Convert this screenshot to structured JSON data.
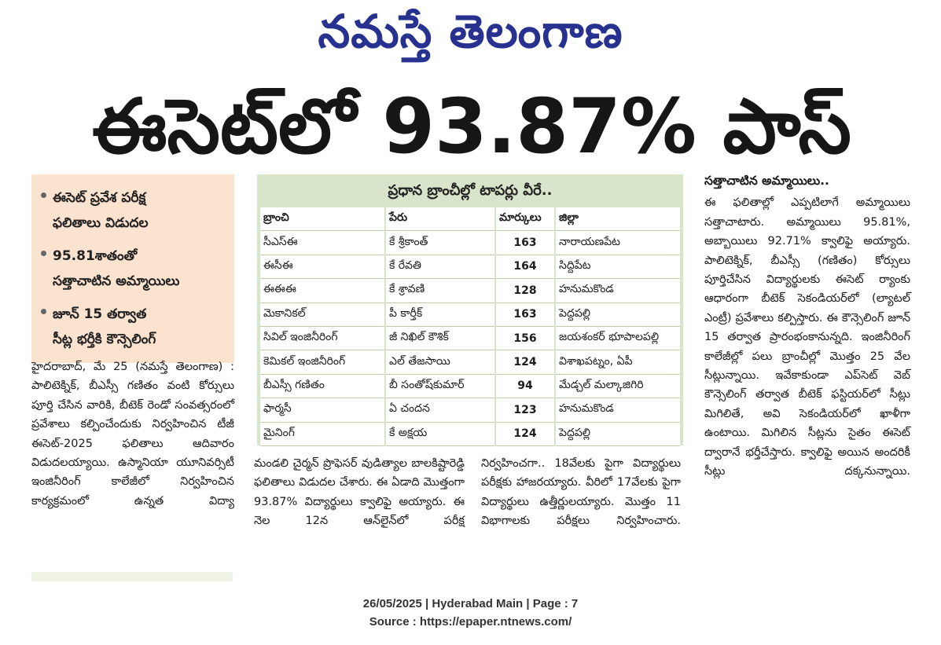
{
  "masthead": "నమస్తే తెలంగాణ",
  "headline": "ఈసెట్‌లో 93.87% పాస్",
  "highlights": [
    {
      "lines": [
        "ఈసెట్ ప్రవేశ పరీక్ష",
        "ఫలితాలు విడుదల"
      ]
    },
    {
      "lines": [
        "95.81శాతంతో",
        "సత్తాచాటిన అమ్మాయిలు"
      ]
    },
    {
      "lines": [
        "జూన్ 15 తర్వాత",
        "సీట్ల భర్తీకి కౌన్సెలింగ్"
      ]
    }
  ],
  "toppers_table": {
    "title": "ప్రధాన బ్రాంచీల్లో టాపర్లు వీరే..",
    "headers": [
      "బ్రాంచి",
      "పేరు",
      "మార్కులు",
      "జిల్లా"
    ],
    "rows": [
      [
        "సీఎస్ఈ",
        "కే శ్రీకాంత్",
        "163",
        "నారాయణపేట"
      ],
      [
        "ఈసీఈ",
        "కే రేవతి",
        "164",
        "సిద్దిపేట"
      ],
      [
        "ఈఈఈ",
        "కే శ్రావణి",
        "128",
        "హనుమకొండ"
      ],
      [
        "మెకానికల్",
        "పీ కార్తీక్",
        "163",
        "పెద్దపల్లి"
      ],
      [
        "సివిల్ ఇంజినీరింగ్",
        "జీ నిఖిల్ కౌశిక్",
        "156",
        "జయశంకర్ భూపాలపల్లి"
      ],
      [
        "కెమికల్ ఇంజినీరింగ్",
        "ఎల్ తేజసాయి",
        "124",
        "విశాఖపట్నం, ఏపీ"
      ],
      [
        "బీఎస్సీ గణితం",
        "బీ సంతోష్‌కుమార్",
        "94",
        "మేడ్చల్ మల్కాజిగిరి"
      ],
      [
        "ఫార్మసీ",
        "ఏ చందన",
        "123",
        "హనుమకొండ"
      ],
      [
        "మైనింగ్",
        "కే అక్షయ",
        "124",
        "పెద్దపల్లి"
      ]
    ]
  },
  "article": {
    "col1": "హైదరాబాద్, మే 25 (నమస్తే తెలంగాణ) : పాలిటెక్నిక్, బీఎస్సీ గణితం వంటి కోర్సులు పూర్తి చేసిన వారికి, బీటెక్ రెండో సంవత్సరంలో ప్రవేశాలు కల్పించేందుకు నిర్వహించిన టీజీ ఈసెట్-2025 ఫలితాలు ఆదివారం విడుదలయ్యాయి. ఉస్మానియా యూనివర్సిటీ ఇంజినీరింగ్ కాలేజీలో నిర్వహించిన కార్యక్రమంలో ఉన్నత విద్యా",
    "col2": "మండలి చైర్మన్ ప్రొఫెసర్ వుడిత్యాల బాలకిష్టారెడ్డి ఫలితాలు విడుదల చేశారు. ఈ ఏడాది మొత్తంగా 93.87% విద్యార్థులు క్వాలిఫై అయ్యారు. ఈ నెల 12న ఆన్‌లైన్‌లో పరీక్ష",
    "col3": "నిర్వహించగా.. 18వేలకు పైగా విద్యార్థులు పరీక్షకు హాజరయ్యారు. వీరిలో 17వేలకు పైగా విద్యార్థులు ఉత్తీర్ణులయ్యారు. మొత్తం 11 విభాగాలకు పరీక్షలు నిర్వహించారు.",
    "col4_title": "సత్తాచాటిన అమ్మాయిలు..",
    "col4": "ఈ ఫలితాల్లో ఎప్పటిలాగే అమ్మాయిలు సత్తాచాటారు. అమ్మాయిలు 95.81%, అబ్బాయిలు 92.71% క్వాలిఫై అయ్యారు. పాలిటెక్నిక్, బీఎస్సీ (గణితం) కోర్సులు పూర్తిచేసిన విద్యార్థులకు ఈసెట్ ర్యాంకు ఆధారంగా బీటెక్ సెకండియర్‌లో (ల్యాటల్ ఎంట్రీ) ప్రవేశాలు కల్పిస్తారు. ఈ కౌన్సెలింగ్ జూన్ 15 తర్వాత ప్రారంభంకానున్నది. ఇంజినీరింగ్ కాలేజీల్లో పలు బ్రాంచీల్లో మొత్తం 25 వేల సీట్లున్నాయి. ఇవేకాకుండా ఎప్‌సెట్ వెబ్ కౌన్సెలింగ్ తర్వాత బీటెక్ ఫస్టియర్‌లో సీట్లు మిగిలితే, అవి సెకండియర్‌లో ఖాళీగా ఉంటాయి. మిగిలిన సీట్లను సైతం ఈసెట్ ద్వారానే భర్తీచేస్తారు. క్వాలిఫై అయిన అందరికీ సీట్లు దక్కనున్నాయి."
  },
  "footer": {
    "line1": "26/05/2025 | Hyderabad Main | Page : 7",
    "line2": "Source : https://epaper.ntnews.com/"
  }
}
